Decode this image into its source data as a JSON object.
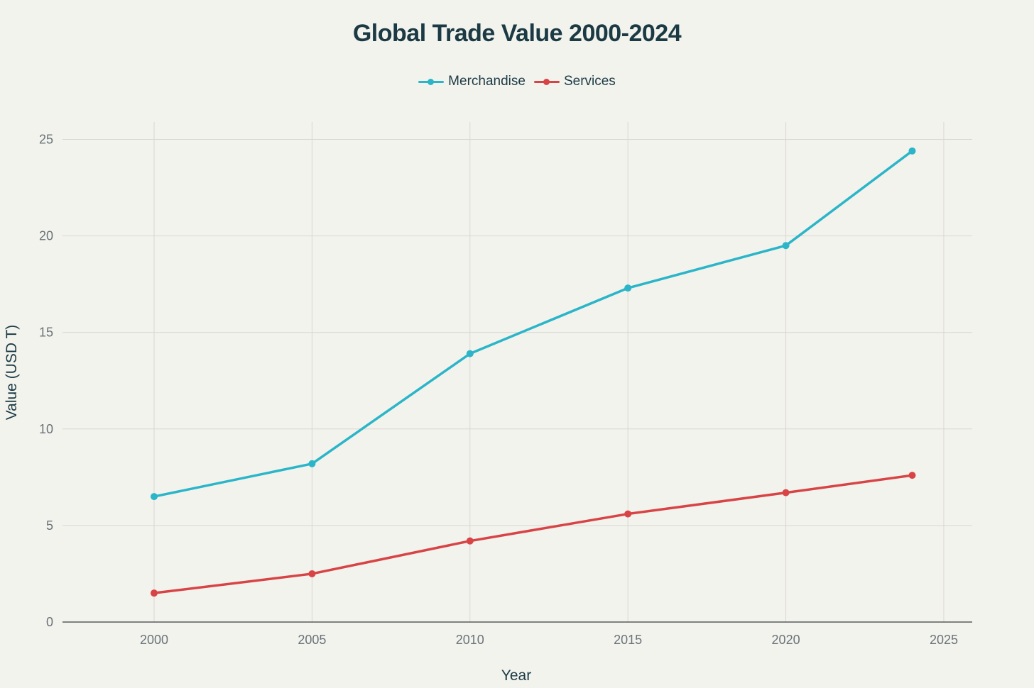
{
  "chart_data": {
    "type": "line",
    "title": "Global Trade Value 2000-2024",
    "xlabel": "Year",
    "ylabel": "Value (USD T)",
    "x": [
      2000,
      2005,
      2010,
      2015,
      2020,
      2024
    ],
    "series": [
      {
        "name": "Merchandise",
        "color": "#2bb5c8",
        "values": [
          6.5,
          8.2,
          13.9,
          17.3,
          19.5,
          24.4
        ]
      },
      {
        "name": "Services",
        "color": "#d84445",
        "values": [
          1.5,
          2.5,
          4.2,
          5.6,
          6.7,
          7.6
        ]
      }
    ],
    "xlim": [
      1997.1,
      2025.9
    ],
    "ylim": [
      0,
      25.9
    ],
    "xticks": [
      "2000",
      "2005",
      "2010",
      "2015",
      "2020",
      "2025"
    ],
    "yticks": [
      "0",
      "5",
      "10",
      "15",
      "20",
      "25"
    ],
    "grid": true,
    "legend": "top-center"
  }
}
